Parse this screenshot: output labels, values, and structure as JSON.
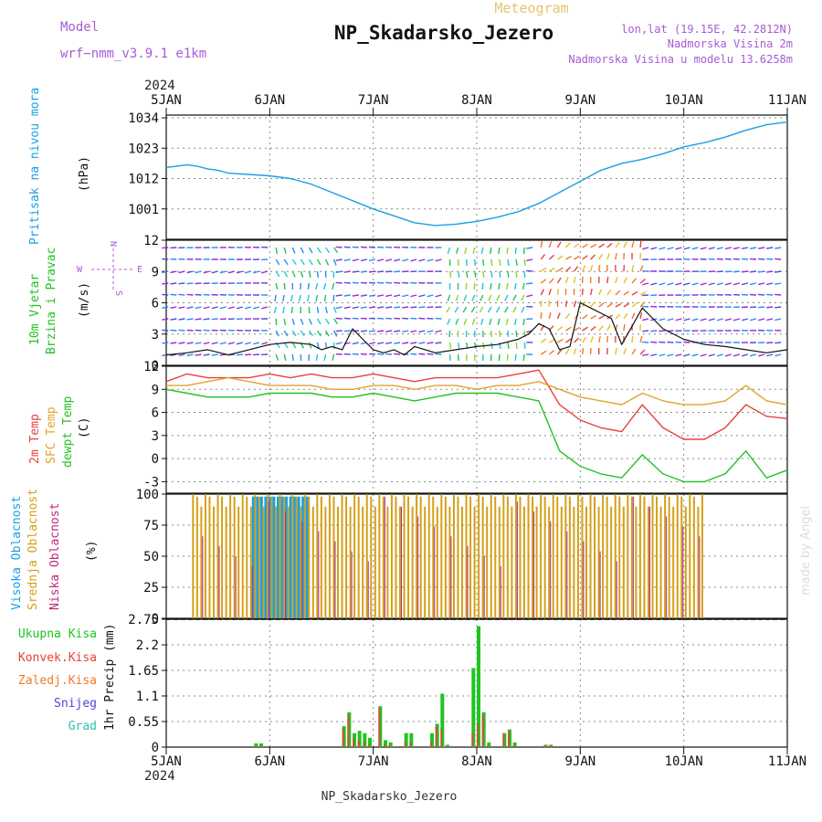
{
  "header": {
    "model_label": "Model",
    "model_name": "wrf−nmm_v3.9.1 e1km",
    "product": "Meteogram",
    "station": "NP_Skadarsko_Jezero",
    "lonlat": "lon,lat (19.15E, 42.2812N)",
    "elevation": "Nadmorska Visina 2m",
    "model_elevation": "Nadmorska Visina u modelu 13.6258m",
    "credit": "made by Angel"
  },
  "footer": {
    "station": "NP_Skadarsko_Jezero"
  },
  "colors": {
    "pressure": "#1aa0e6",
    "temp2m": "#e8413c",
    "sfc_temp": "#e0a32e",
    "dewpoint": "#22c322",
    "high_cloud": "#1aa0e6",
    "mid_cloud": "#d4a017",
    "low_cloud": "#b0289a",
    "total_precip": "#22c322",
    "conv_precip": "#e8413c",
    "frozen_precip": "#f07a2a",
    "snow": "#4a48d8",
    "hail": "#2cc0b0",
    "wind_label": "#22c322",
    "cloud_label_high": "#1aa0e6",
    "wind_compass": "#b05ad8"
  },
  "chart_data": [
    {
      "id": "pressure",
      "type": "line",
      "ylabel": "Pritisak na nivou mora",
      "unit": "(hPa)",
      "yticks": [
        1001,
        1012,
        1023,
        1034
      ],
      "ylim": [
        990,
        1035
      ],
      "x_days": [
        0,
        0.1,
        0.2,
        0.3,
        0.4,
        0.5,
        0.6,
        0.8,
        1.0,
        1.2,
        1.4,
        1.6,
        1.8,
        2.0,
        2.2,
        2.4,
        2.6,
        2.8,
        3.0,
        3.2,
        3.4,
        3.6,
        3.8,
        4.0,
        4.2,
        4.4,
        4.6,
        4.8,
        5.0,
        5.2,
        5.4,
        5.6,
        5.8,
        6.0
      ],
      "values": [
        1016,
        1016.5,
        1017,
        1016.5,
        1015.5,
        1015,
        1014,
        1013.5,
        1013,
        1012,
        1010,
        1007,
        1004,
        1001,
        998.5,
        996,
        995,
        995.5,
        996.5,
        998,
        1000,
        1003,
        1007,
        1011,
        1015,
        1017.5,
        1019,
        1021,
        1023.5,
        1025,
        1027,
        1029.5,
        1031.5,
        1032.5
      ]
    },
    {
      "id": "wind",
      "type": "line",
      "ylabel_1": "10m Vjetar",
      "ylabel_2": "Brzina i Pravac",
      "unit": "(m/s)",
      "compass": {
        "n": "N",
        "s": "S",
        "e": "E",
        "w": "W"
      },
      "yticks": [
        0,
        3,
        6,
        9,
        12
      ],
      "ylim": [
        0,
        12
      ],
      "x_days": [
        0,
        0.2,
        0.4,
        0.6,
        0.8,
        1.0,
        1.2,
        1.4,
        1.5,
        1.6,
        1.7,
        1.8,
        1.9,
        2.0,
        2.1,
        2.2,
        2.3,
        2.4,
        2.6,
        2.8,
        3.0,
        3.2,
        3.4,
        3.5,
        3.6,
        3.7,
        3.8,
        3.9,
        4.0,
        4.1,
        4.2,
        4.3,
        4.4,
        4.6,
        4.8,
        5.0,
        5.2,
        5.4,
        5.6,
        5.8,
        6.0
      ],
      "speed": [
        1.0,
        1.2,
        1.5,
        1.0,
        1.5,
        2.0,
        2.2,
        2.0,
        1.5,
        1.8,
        1.5,
        3.5,
        2.5,
        1.5,
        1.2,
        1.5,
        1.0,
        1.8,
        1.2,
        1.5,
        1.8,
        2.0,
        2.5,
        3.0,
        4.0,
        3.5,
        1.5,
        1.8,
        6.0,
        5.5,
        5.0,
        4.5,
        2.0,
        5.5,
        3.5,
        2.5,
        2.0,
        1.8,
        1.5,
        1.2,
        1.5
      ]
    },
    {
      "id": "temperature",
      "type": "line",
      "ylabel_1": "2m Temp",
      "ylabel_2": "SFC Temp",
      "ylabel_3": "dewpt Temp",
      "unit": "(C)",
      "yticks": [
        -3,
        0,
        3,
        6,
        9,
        12
      ],
      "ylim": [
        -4.5,
        12
      ],
      "x_days": [
        0,
        0.2,
        0.4,
        0.6,
        0.8,
        1.0,
        1.2,
        1.4,
        1.6,
        1.8,
        2.0,
        2.2,
        2.4,
        2.6,
        2.8,
        3.0,
        3.2,
        3.4,
        3.6,
        3.8,
        4.0,
        4.2,
        4.4,
        4.6,
        4.8,
        5.0,
        5.2,
        5.4,
        5.6,
        5.8,
        6.0
      ],
      "series": [
        {
          "name": "2m Temp",
          "values": [
            10,
            11,
            10.5,
            10.5,
            10.5,
            11,
            10.5,
            11,
            10.5,
            10.5,
            11,
            10.5,
            10,
            10.5,
            10.5,
            10.5,
            10.5,
            11,
            11.5,
            7,
            5,
            4,
            3.5,
            7,
            4,
            2.5,
            2.5,
            4,
            7,
            5.5,
            5.2
          ]
        },
        {
          "name": "SFC Temp",
          "values": [
            9.5,
            9.5,
            10,
            10.5,
            10,
            9.5,
            9.5,
            9.5,
            9,
            9,
            9.5,
            9.5,
            9,
            9.5,
            9.5,
            9,
            9.5,
            9.5,
            10,
            9,
            8,
            7.5,
            7,
            8.5,
            7.5,
            7,
            7,
            7.5,
            9.5,
            7.5,
            7
          ]
        },
        {
          "name": "dewpt Temp",
          "values": [
            9,
            8.5,
            8,
            8,
            8,
            8.5,
            8.5,
            8.5,
            8,
            8,
            8.5,
            8,
            7.5,
            8,
            8.5,
            8.5,
            8.5,
            8,
            7.5,
            1,
            -1,
            -2,
            -2.5,
            0.5,
            -2,
            -3,
            -3,
            -2,
            1,
            -2.5,
            -1.5
          ]
        }
      ]
    },
    {
      "id": "clouds",
      "type": "bar",
      "ylabel_1": "Visoka Oblacnost",
      "ylabel_2": "Srednja Oblacnost",
      "ylabel_3": "Niska Oblacnost",
      "unit": "(%)",
      "yticks": [
        0,
        25,
        50,
        75,
        100
      ],
      "ylim": [
        0,
        100
      ],
      "bar_start_day": 0.25,
      "bar_end_day": 5.2,
      "bar_step_day": 0.04,
      "high_cloud_window_days": [
        0.8,
        1.35
      ]
    },
    {
      "id": "precip",
      "type": "bar",
      "ylabel": "1hr Precip (mm)",
      "legend": [
        "Ukupna Kisa",
        "Konvek.Kisa",
        "Zaledj.Kisa",
        "Snijeg",
        "Grad"
      ],
      "yticks": [
        0,
        0.55,
        1.1,
        1.65,
        2.2,
        2.75
      ],
      "ylim": [
        0,
        2.75
      ],
      "x_days": [
        0.85,
        0.9,
        1.7,
        1.75,
        1.8,
        1.85,
        1.9,
        1.95,
        2.05,
        2.1,
        2.15,
        2.3,
        2.35,
        2.55,
        2.6,
        2.65,
        2.7,
        2.95,
        3.0,
        3.05,
        3.1,
        3.25,
        3.3,
        3.35,
        3.65,
        3.7
      ],
      "total": [
        0.08,
        0.08,
        0.45,
        0.75,
        0.3,
        0.35,
        0.3,
        0.2,
        0.88,
        0.15,
        0.1,
        0.3,
        0.3,
        0.3,
        0.5,
        1.15,
        0.05,
        1.7,
        2.6,
        0.75,
        0.1,
        0.3,
        0.38,
        0.1,
        0.05,
        0.05
      ],
      "convective": [
        0.02,
        0.02,
        0.4,
        0.7,
        0.2,
        0.15,
        0.1,
        0.05,
        0.85,
        0.05,
        0.05,
        0.1,
        0.1,
        0.1,
        0.45,
        0.4,
        0.02,
        0.3,
        0.5,
        0.7,
        0.05,
        0.3,
        0.35,
        0.05,
        0.05,
        0.05
      ]
    }
  ],
  "time_axis": {
    "labels": [
      "5JAN",
      "6JAN",
      "7JAN",
      "8JAN",
      "9JAN",
      "10JAN",
      "11JAN"
    ],
    "year": "2024"
  }
}
